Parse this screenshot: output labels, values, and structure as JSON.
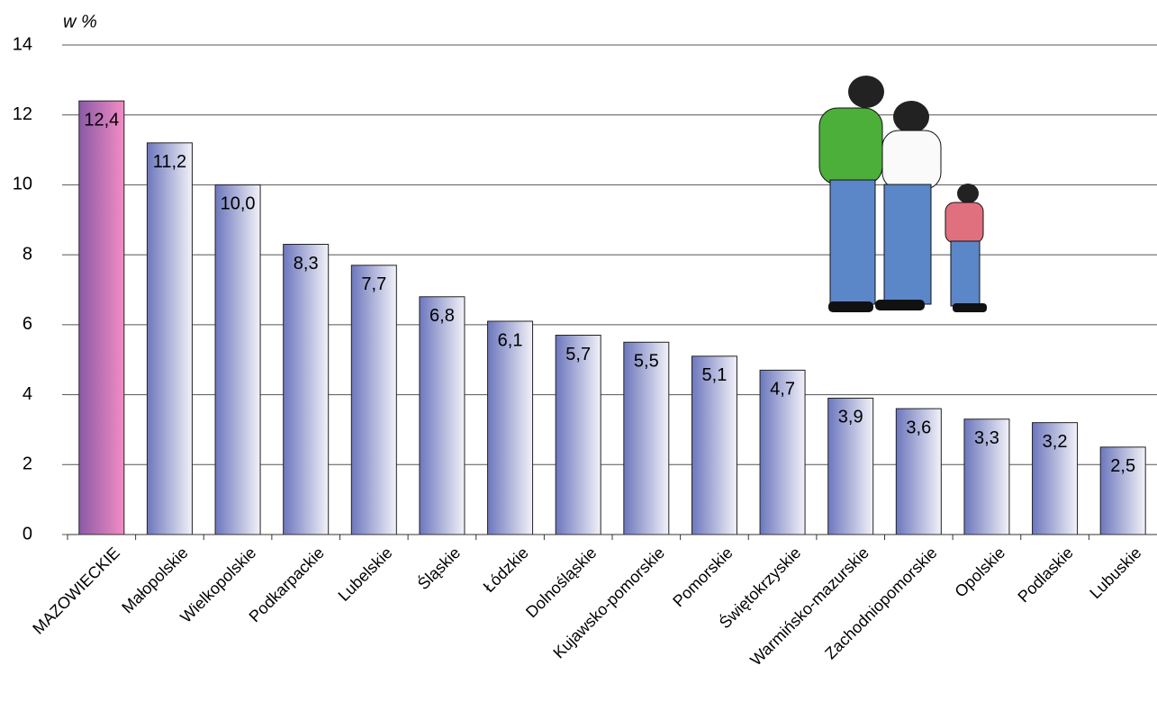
{
  "chart_data": {
    "type": "bar",
    "y_label": "w %",
    "categories": [
      "MAZOWIECKIE",
      "Małopolskie",
      "Wielkopolskie",
      "Podkarpackie",
      "Lubelskie",
      "Śląskie",
      "Łódzkie",
      "Dolnośląskie",
      "Kujawsko-pomorskie",
      "Pomorskie",
      "Świętokrzyskie",
      "Warmińsko-mazurskie",
      "Zachodniopomorskie",
      "Opolskie",
      "Podlaskie",
      "Lubuskie"
    ],
    "values": [
      12.4,
      11.2,
      10.0,
      8.3,
      7.7,
      6.8,
      6.1,
      5.7,
      5.5,
      5.1,
      4.7,
      3.9,
      3.6,
      3.3,
      3.2,
      2.5
    ],
    "value_labels": [
      "12,4",
      "11,2",
      "10,0",
      "8,3",
      "7,7",
      "6,8",
      "6,1",
      "5,7",
      "5,5",
      "5,1",
      "4,7",
      "3,9",
      "3,6",
      "3,3",
      "3,2",
      "2,5"
    ],
    "bar_colors": [
      [
        "#8a5aa6",
        "#f48cc4"
      ],
      [
        "#6c77bd",
        "#f2f2f8"
      ],
      [
        "#6c77bd",
        "#f2f2f8"
      ],
      [
        "#6c77bd",
        "#f2f2f8"
      ],
      [
        "#6c77bd",
        "#f2f2f8"
      ],
      [
        "#6c77bd",
        "#f2f2f8"
      ],
      [
        "#6c77bd",
        "#f2f2f8"
      ],
      [
        "#6c77bd",
        "#f2f2f8"
      ],
      [
        "#6c77bd",
        "#f2f2f8"
      ],
      [
        "#6c77bd",
        "#f2f2f8"
      ],
      [
        "#6c77bd",
        "#f2f2f8"
      ],
      [
        "#6c77bd",
        "#f2f2f8"
      ],
      [
        "#6c77bd",
        "#f2f2f8"
      ],
      [
        "#6c77bd",
        "#f2f2f8"
      ],
      [
        "#6c77bd",
        "#f2f2f8"
      ],
      [
        "#6c77bd",
        "#f2f2f8"
      ]
    ],
    "ylim": [
      0,
      14
    ],
    "yticks": [
      0,
      2,
      4,
      6,
      8,
      10,
      12,
      14
    ],
    "grid": true
  }
}
